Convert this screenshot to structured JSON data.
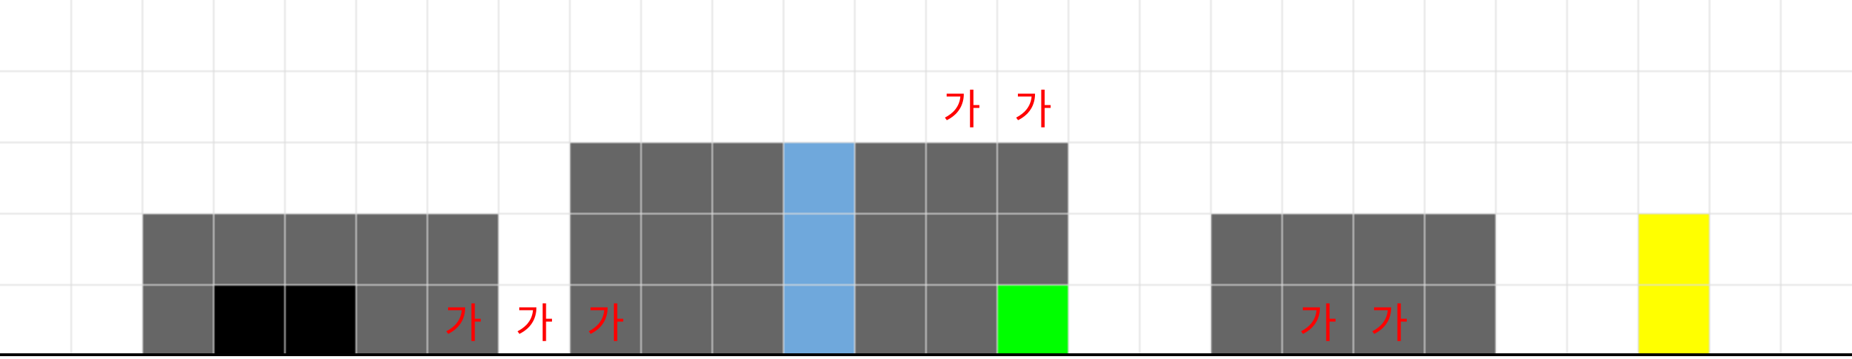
{
  "grid": {
    "cols": 26,
    "rows": 5
  },
  "colors": {
    "background": "#ffffff",
    "grid_line": "#dddddd",
    "ground": "#000000",
    "wall": "#666666",
    "pit": "#000000",
    "water": "#6fa8dc",
    "goal": "#00ff00",
    "gem": "#ffff00",
    "glyph": "#ff0000"
  },
  "tiles": [
    {
      "type": "wall",
      "col": 2,
      "row": 3
    },
    {
      "type": "wall",
      "col": 3,
      "row": 3
    },
    {
      "type": "wall",
      "col": 4,
      "row": 3
    },
    {
      "type": "wall",
      "col": 5,
      "row": 3
    },
    {
      "type": "wall",
      "col": 6,
      "row": 3
    },
    {
      "type": "wall",
      "col": 2,
      "row": 4
    },
    {
      "type": "pit",
      "col": 3,
      "row": 4
    },
    {
      "type": "pit",
      "col": 4,
      "row": 4
    },
    {
      "type": "wall",
      "col": 5,
      "row": 4
    },
    {
      "type": "wall",
      "col": 6,
      "row": 4
    },
    {
      "type": "wall",
      "col": 8,
      "row": 2
    },
    {
      "type": "wall",
      "col": 9,
      "row": 2
    },
    {
      "type": "wall",
      "col": 10,
      "row": 2
    },
    {
      "type": "water",
      "col": 11,
      "row": 2
    },
    {
      "type": "wall",
      "col": 12,
      "row": 2
    },
    {
      "type": "wall",
      "col": 13,
      "row": 2
    },
    {
      "type": "wall",
      "col": 14,
      "row": 2
    },
    {
      "type": "wall",
      "col": 8,
      "row": 3
    },
    {
      "type": "wall",
      "col": 9,
      "row": 3
    },
    {
      "type": "wall",
      "col": 10,
      "row": 3
    },
    {
      "type": "water",
      "col": 11,
      "row": 3
    },
    {
      "type": "wall",
      "col": 12,
      "row": 3
    },
    {
      "type": "wall",
      "col": 13,
      "row": 3
    },
    {
      "type": "wall",
      "col": 14,
      "row": 3
    },
    {
      "type": "wall",
      "col": 8,
      "row": 4
    },
    {
      "type": "wall",
      "col": 9,
      "row": 4
    },
    {
      "type": "wall",
      "col": 10,
      "row": 4
    },
    {
      "type": "water",
      "col": 11,
      "row": 4
    },
    {
      "type": "wall",
      "col": 12,
      "row": 4
    },
    {
      "type": "wall",
      "col": 13,
      "row": 4
    },
    {
      "type": "goal",
      "col": 14,
      "row": 4
    },
    {
      "type": "wall",
      "col": 17,
      "row": 3
    },
    {
      "type": "wall",
      "col": 18,
      "row": 3
    },
    {
      "type": "wall",
      "col": 19,
      "row": 3
    },
    {
      "type": "wall",
      "col": 20,
      "row": 3
    },
    {
      "type": "wall",
      "col": 17,
      "row": 4
    },
    {
      "type": "wall",
      "col": 18,
      "row": 4
    },
    {
      "type": "wall",
      "col": 19,
      "row": 4
    },
    {
      "type": "wall",
      "col": 20,
      "row": 4
    },
    {
      "type": "gem",
      "col": 23,
      "row": 3
    },
    {
      "type": "gem",
      "col": 23,
      "row": 4
    }
  ],
  "glyphs": [
    {
      "text": "가",
      "col": 13,
      "row": 1
    },
    {
      "text": "가",
      "col": 14,
      "row": 1
    },
    {
      "text": "가",
      "col": 6,
      "row": 4
    },
    {
      "text": "가",
      "col": 7,
      "row": 4
    },
    {
      "text": "가",
      "col": 8,
      "row": 4
    },
    {
      "text": "가",
      "col": 18,
      "row": 4
    },
    {
      "text": "가",
      "col": 19,
      "row": 4
    }
  ]
}
